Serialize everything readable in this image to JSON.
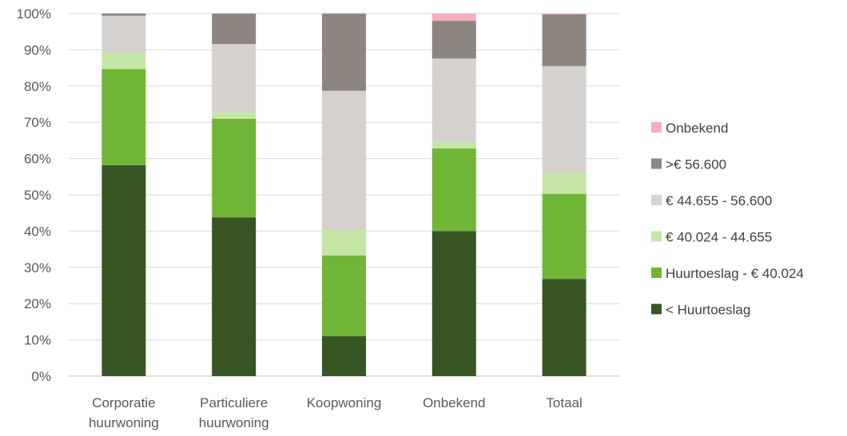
{
  "chart_data": {
    "type": "bar",
    "stacked": true,
    "percent": true,
    "categories": [
      [
        "Corporatie",
        "huurwoning"
      ],
      [
        "Particuliere",
        "huurwoning"
      ],
      [
        "Koopwoning"
      ],
      [
        "Onbekend"
      ],
      [
        "Totaal"
      ]
    ],
    "yticks": [
      "0%",
      "10%",
      "20%",
      "30%",
      "40%",
      "50%",
      "60%",
      "70%",
      "80%",
      "90%",
      "100%"
    ],
    "ylim": [
      0,
      100
    ],
    "grid": true,
    "legend_position": "right",
    "series": [
      {
        "name": "< Huurtoeslag",
        "color": "#375623",
        "values": [
          58.2,
          43.8,
          11.0,
          40.0,
          26.8
        ]
      },
      {
        "name": "Huurtoeslag - € 40.024",
        "color": "#70b536",
        "values": [
          26.5,
          27.2,
          22.3,
          22.8,
          23.5
        ]
      },
      {
        "name": "€ 40.024 - 44.655",
        "color": "#c6e6a8",
        "values": [
          4.4,
          1.8,
          7.0,
          1.8,
          5.8
        ]
      },
      {
        "name": "€ 44.655 - 56.600",
        "color": "#d6d2d0",
        "values": [
          10.3,
          18.8,
          38.4,
          23.0,
          29.4
        ]
      },
      {
        "name": ">€ 56.600",
        "color": "#8f8580",
        "values": [
          0.6,
          8.4,
          21.3,
          10.4,
          14.3
        ]
      },
      {
        "name": "Onbekend",
        "color": "#f4b0bb",
        "values": [
          0.0,
          0.0,
          0.0,
          2.0,
          0.2
        ]
      }
    ]
  }
}
